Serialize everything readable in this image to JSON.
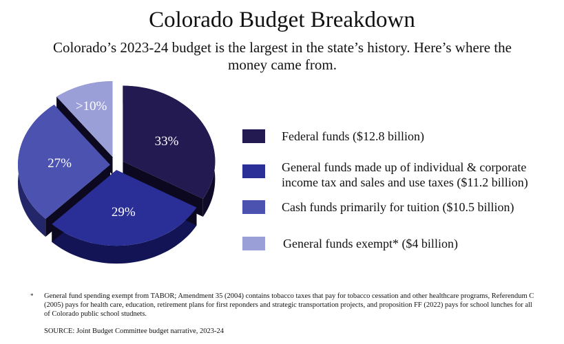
{
  "title": "Colorado Budget Breakdown",
  "subtitle": "Colorado’s 2023-24 budget is the largest in the state’s history. Here’s where the money came from.",
  "chart_data": {
    "type": "pie",
    "slices": [
      {
        "label": "Federal funds ($12.8 billion)",
        "value_billion": 12.8,
        "percent_label": "33%",
        "color": "#231a52",
        "side_color": "#0f0a28"
      },
      {
        "label": "General funds made up of individual & corporate income tax and sales and use taxes ($11.2 billion)",
        "value_billion": 11.2,
        "percent_label": "29%",
        "color": "#2a2e97",
        "side_color": "#121456"
      },
      {
        "label": "Cash funds primarily for tuition  ($10.5 billion)",
        "value_billion": 10.5,
        "percent_label": "27%",
        "color": "#4b52b0",
        "side_color": "#23276a"
      },
      {
        "label": "General funds exempt*  ($4 billion)",
        "value_billion": 4,
        "percent_label": ">10%",
        "color": "#9b9fd7",
        "side_color": "#5a5d96"
      }
    ],
    "legend_position": "right"
  },
  "footnote": {
    "mark": "*",
    "text": "General fund spending exempt from TABOR; Amendment 35 (2004) contains tobacco taxes that pay for tobacco cessation and other healthcare programs, Referendum C (2005) pays for health care, education, retirement plans for first reponders and strategic transportation projects, and proposition FF (2022) pays for school lunches for all of Colorado public school studnets."
  },
  "source": "SOURCE: Joint Budget Committee budget narrative, 2023-24"
}
